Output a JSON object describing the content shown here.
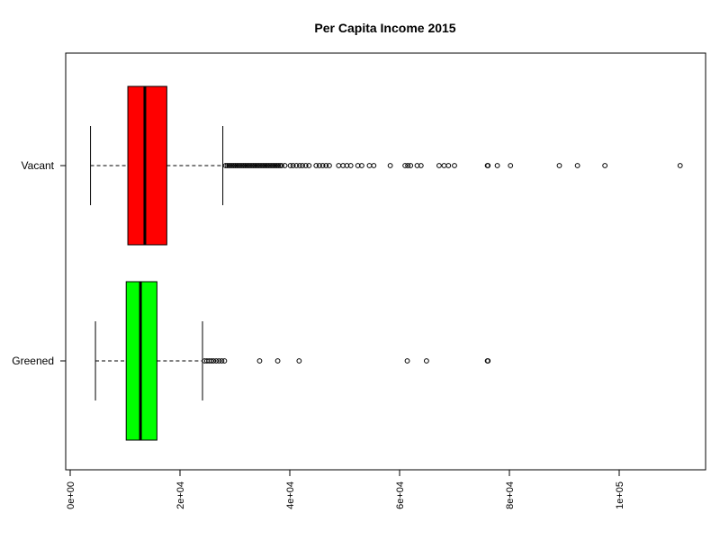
{
  "chart_data": {
    "type": "boxplot",
    "orientation": "horizontal",
    "notched": true,
    "title": "Per Capita Income 2015",
    "xlabel": "",
    "ylabel": "",
    "xlim": [
      0,
      116000
    ],
    "x_ticks": [
      0,
      20000,
      40000,
      60000,
      80000,
      100000
    ],
    "x_tick_labels": [
      "0e+00",
      "2e+04",
      "4e+04",
      "6e+04",
      "8e+04",
      "1e+05"
    ],
    "grid": false,
    "legend": "none",
    "categories": [
      "Greened",
      "Vacant"
    ],
    "boxes": [
      {
        "name": "Greened",
        "color": "#00ff00",
        "whisker_low": 4600,
        "q1": 10200,
        "median": 12800,
        "q3": 15800,
        "whisker_high": 24100,
        "notch_low": 12400,
        "notch_high": 13200,
        "outliers": [
          24500,
          24900,
          25300,
          25700,
          26100,
          26600,
          27100,
          27600,
          28100,
          34500,
          37800,
          41700,
          61400,
          64900,
          76000,
          76100
        ]
      },
      {
        "name": "Vacant",
        "color": "#ff0000",
        "whisker_low": 3700,
        "q1": 10500,
        "median": 13600,
        "q3": 17600,
        "whisker_high": 27800,
        "notch_low": 13300,
        "notch_high": 13900,
        "outliers": [
          28300,
          28600,
          28900,
          29200,
          29500,
          29800,
          30100,
          30400,
          30700,
          31000,
          31300,
          31600,
          31900,
          32200,
          32500,
          32800,
          33100,
          33400,
          33700,
          34000,
          34300,
          34600,
          34900,
          35200,
          35500,
          35800,
          36100,
          36400,
          36700,
          37000,
          37300,
          37600,
          37900,
          38200,
          38500,
          39100,
          40100,
          40600,
          41200,
          41800,
          42300,
          42900,
          43500,
          44800,
          45400,
          46000,
          46600,
          47200,
          48900,
          49700,
          50400,
          51100,
          52400,
          53100,
          54500,
          55300,
          58300,
          61000,
          61500,
          62000,
          63200,
          63900,
          67200,
          68100,
          68900,
          70000,
          76000,
          76100,
          77800,
          80200,
          89100,
          92400,
          97400,
          111100
        ]
      }
    ]
  }
}
